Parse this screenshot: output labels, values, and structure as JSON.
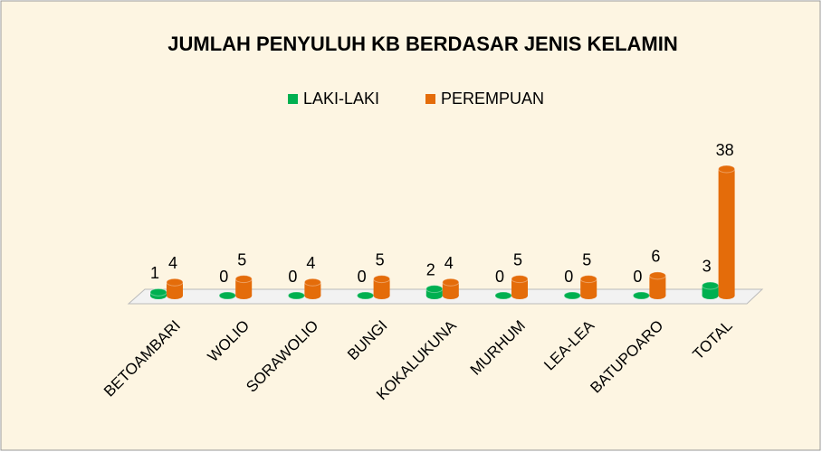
{
  "chart_data": {
    "type": "bar3d",
    "title": "JUMLAH PENYULUH KB BERDASAR JENIS KELAMIN",
    "categories": [
      "BETOAMBARI",
      "WOLIO",
      "SORAWOLIO",
      "BUNGI",
      "KOKALUKUNA",
      "MURHUM",
      "LEA-LEA",
      "BATUPOARO",
      "TOTAL"
    ],
    "series": [
      {
        "name": "LAKI-LAKI",
        "color": "#00b050",
        "values": [
          1,
          0,
          0,
          0,
          2,
          0,
          0,
          0,
          3
        ]
      },
      {
        "name": "PEREMPUAN",
        "color": "#e46c0a",
        "values": [
          4,
          5,
          4,
          5,
          4,
          5,
          5,
          6,
          38
        ]
      }
    ],
    "legend": "top"
  }
}
